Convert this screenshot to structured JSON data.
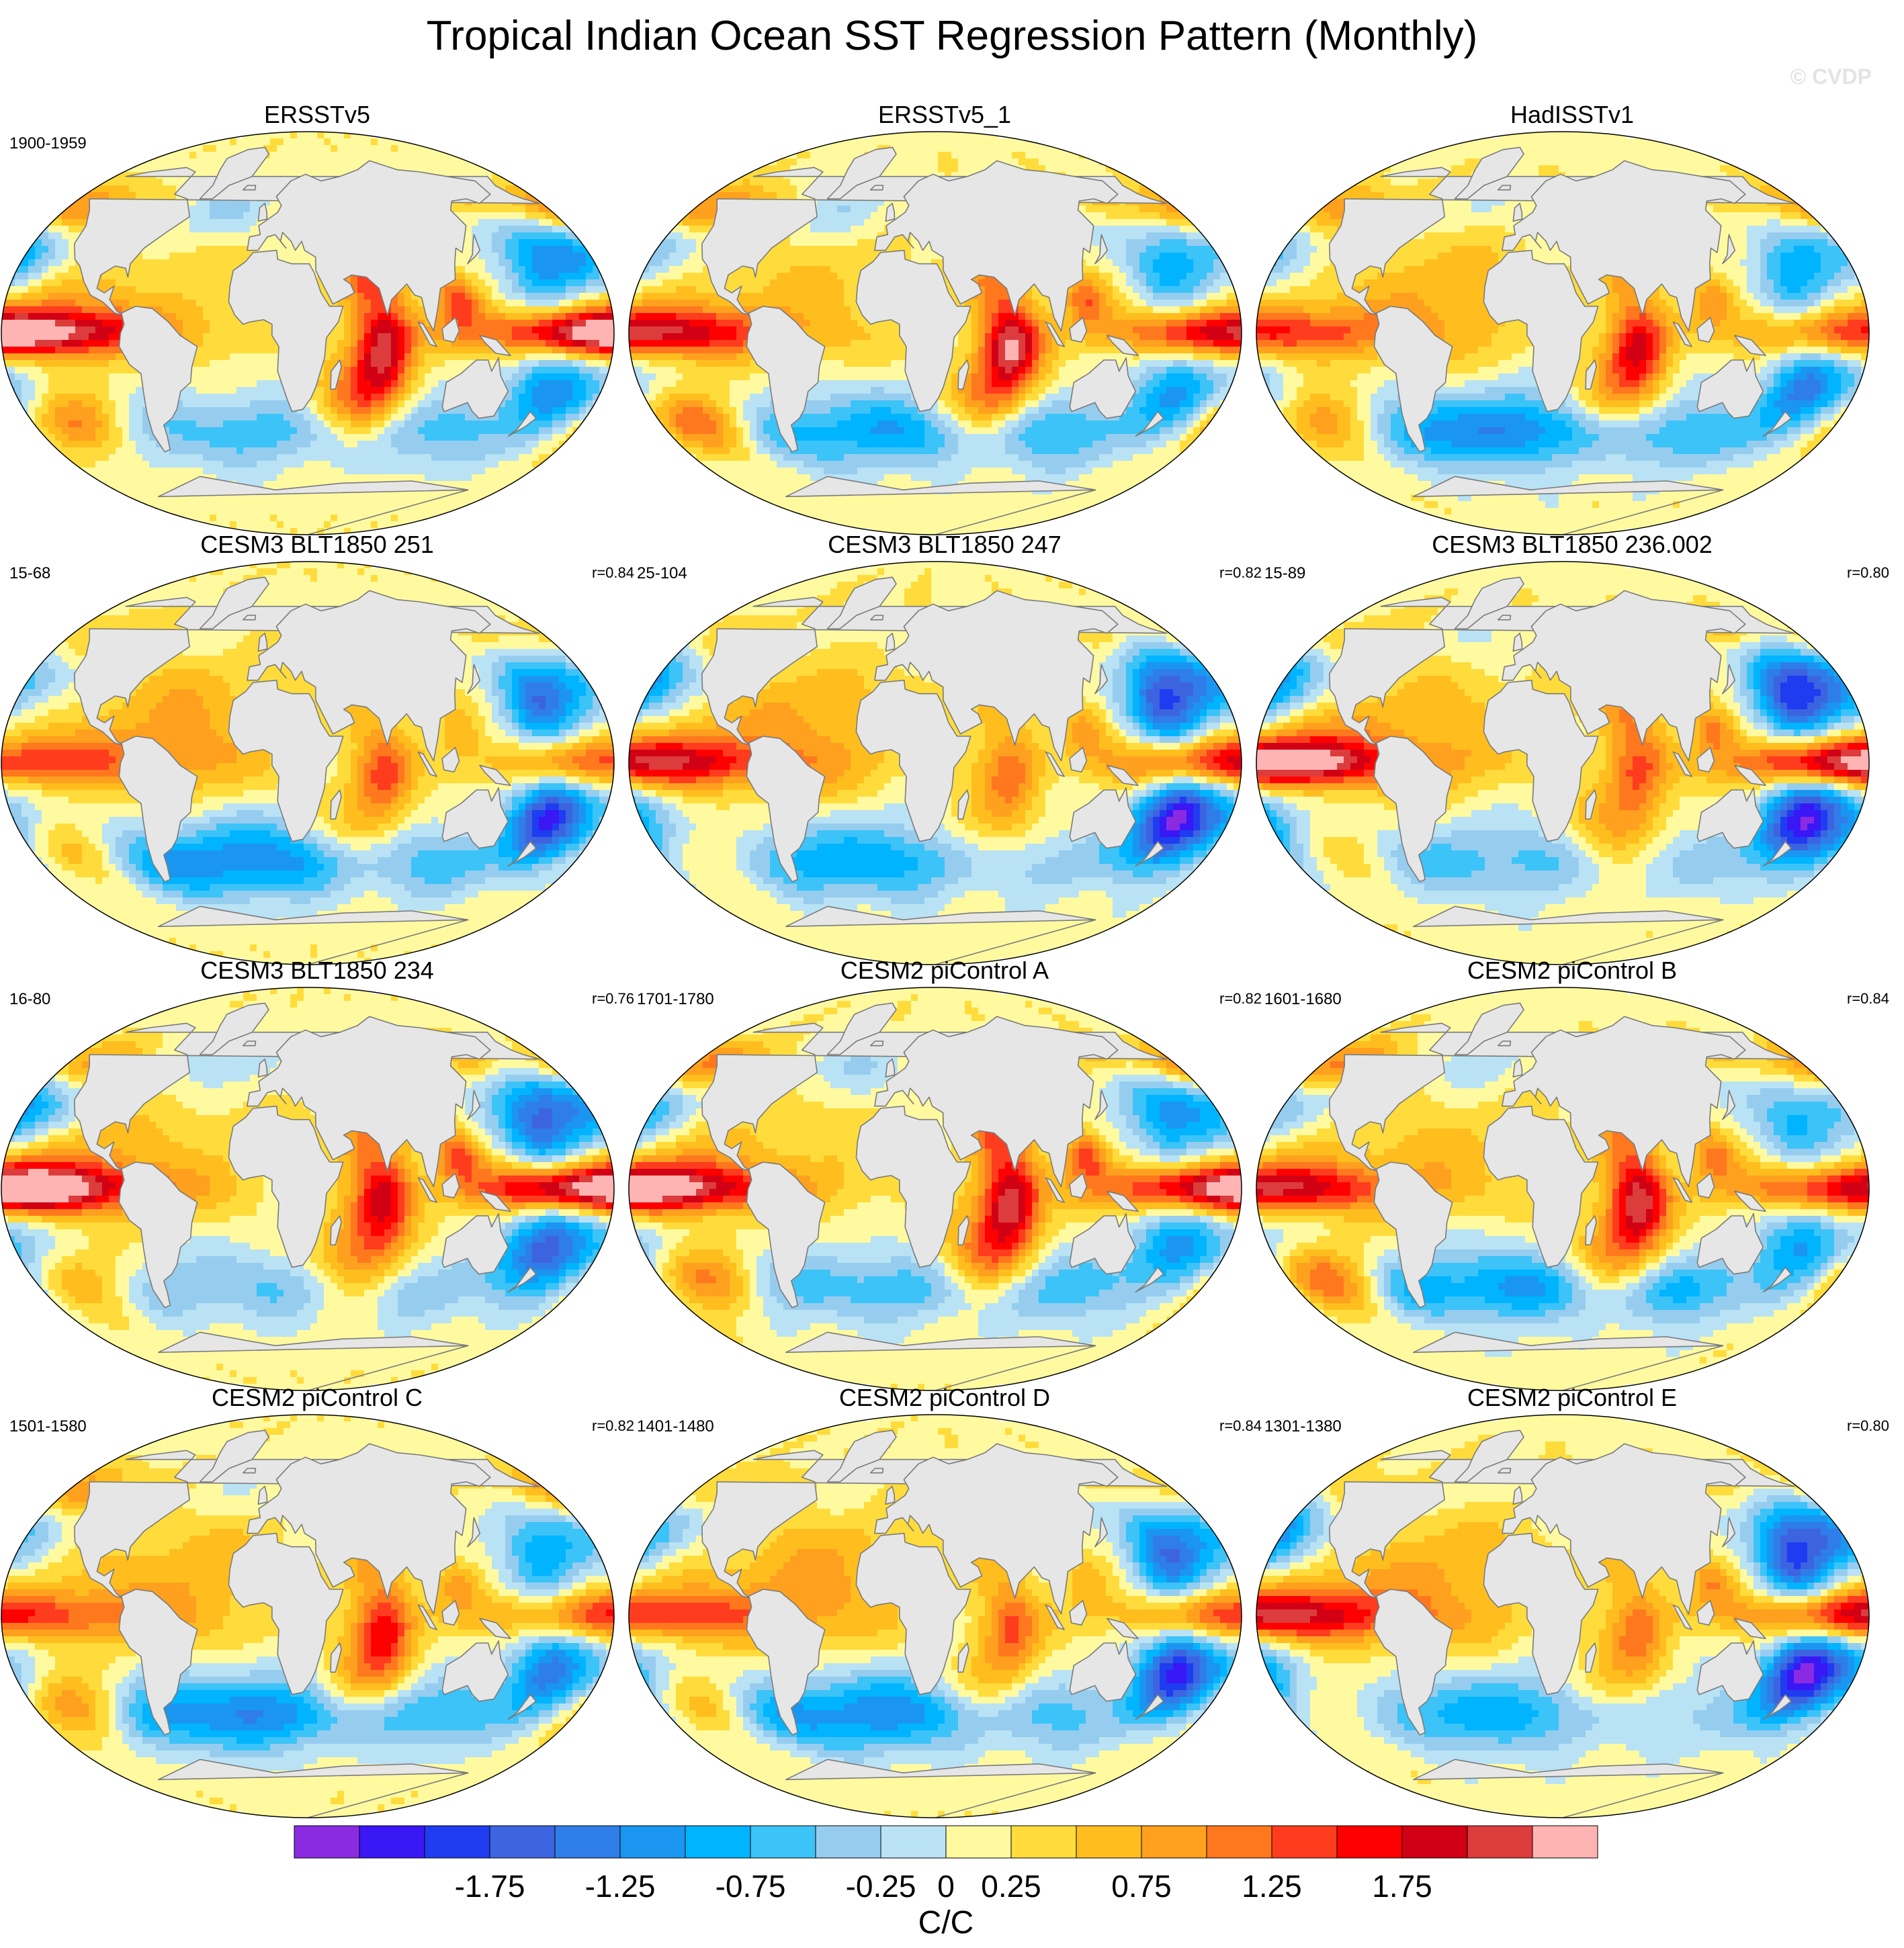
{
  "title": "Tropical Indian Ocean SST Regression Pattern (Monthly)",
  "watermark": "© CVDP",
  "panels": [
    {
      "title": "ERSSTv5",
      "period": "1900-1959",
      "r": "",
      "variant": 0
    },
    {
      "title": "ERSSTv5_1",
      "period": "",
      "r": "",
      "variant": 1
    },
    {
      "title": "HadISSTv1",
      "period": "",
      "r": "",
      "variant": 2
    },
    {
      "title": "CESM3 BLT1850 251",
      "period": "15-68",
      "r": "r=0.84",
      "variant": 3
    },
    {
      "title": "CESM3 BLT1850 247",
      "period": "25-104",
      "r": "r=0.82",
      "variant": 4
    },
    {
      "title": "CESM3 BLT1850 236.002",
      "period": "15-89",
      "r": "r=0.80",
      "variant": 5
    },
    {
      "title": "CESM3 BLT1850 234",
      "period": "16-80",
      "r": "r=0.76",
      "variant": 6
    },
    {
      "title": "CESM2 piControl A",
      "period": "1701-1780",
      "r": "r=0.82",
      "variant": 7
    },
    {
      "title": "CESM2 piControl B",
      "period": "1601-1680",
      "r": "r=0.84",
      "variant": 8
    },
    {
      "title": "CESM2 piControl C",
      "period": "1501-1580",
      "r": "r=0.82",
      "variant": 9
    },
    {
      "title": "CESM2 piControl D",
      "period": "1401-1480",
      "r": "r=0.84",
      "variant": 10
    },
    {
      "title": "CESM2 piControl E",
      "period": "1301-1380",
      "r": "r=0.80",
      "variant": 11
    }
  ],
  "colorbar": {
    "label": "C/C",
    "colors": [
      "#8a2be2",
      "#3a17f5",
      "#1f3cf0",
      "#3d64e0",
      "#2f7de8",
      "#1a96f0",
      "#00b4ff",
      "#3cc3f8",
      "#96cdef",
      "#b9e2f5",
      "#fffaa0",
      "#ffdc3c",
      "#ffbe1e",
      "#ffa01e",
      "#ff781e",
      "#ff3c1e",
      "#ff0000",
      "#d20014",
      "#dc3c3c",
      "#ffb4b4"
    ],
    "tick_labels": [
      "-1.75",
      "-1.25",
      "-0.75",
      "-0.25",
      "0",
      "0.25",
      "0.75",
      "1.25",
      "1.75"
    ]
  },
  "colors": {
    "land": "#e6e6e6",
    "coast": "#7a7a7a"
  }
}
